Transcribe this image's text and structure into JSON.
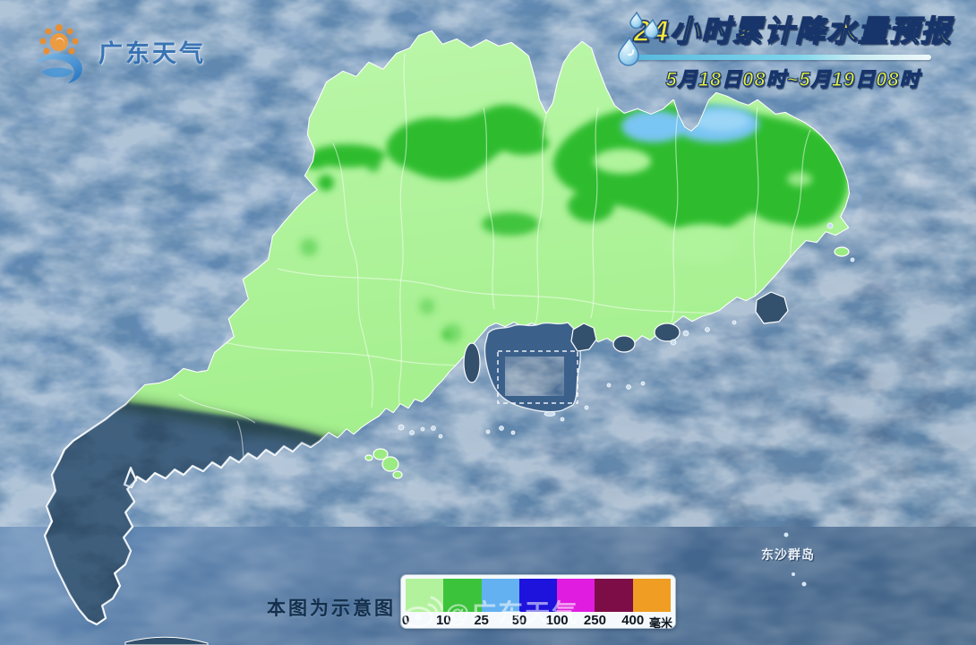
{
  "logo": {
    "text": "广东天气"
  },
  "header": {
    "title": "24小时累计降水量预报",
    "subtitle": "5月18日08时~5月19日08时"
  },
  "map": {
    "labels": {
      "dongsha": "东沙群岛"
    }
  },
  "legend": {
    "note": "本图为示意图",
    "unit": "毫米",
    "ticks": [
      "0",
      "10",
      "25",
      "50",
      "100",
      "250",
      "400"
    ],
    "colors": [
      "#b2f29d",
      "#3cc33c",
      "#63b1f1",
      "#1d13dc",
      "#df1cdf",
      "#7c0d46",
      "#f09d23"
    ]
  },
  "watermark": {
    "text": "@广东天气"
  },
  "colors": {
    "title_yellow": "#ffe93a",
    "subtitle_yellow": "#e9f23e",
    "ocean_light": "#7199c4",
    "ocean_deep": "#3a5c80",
    "outside_land": "#6189b5",
    "no_rain_land": "#33516d",
    "rain_light_green": "#aff39b",
    "rain_dark_green": "#2ebc2e",
    "rain_light_blue": "#79c5f3",
    "boundary_white": "#ffffff"
  }
}
